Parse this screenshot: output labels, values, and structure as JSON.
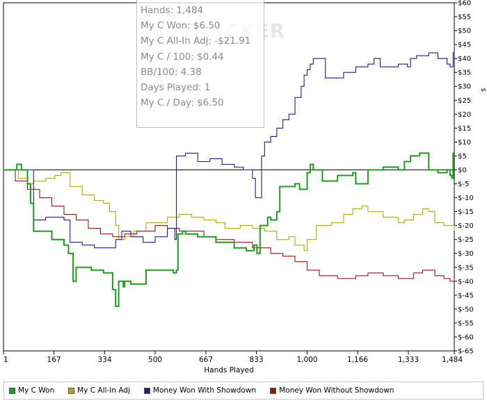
{
  "stats": [
    "Hands: 1,484",
    "My C Won: $6.50",
    "My C All-In Adj: -$21.91",
    "My C / 100: $0.44",
    "BB/100: 4.38",
    "Days Played: 1",
    "My C / Day: $6.50"
  ],
  "watermark": "TRACKER",
  "chart_data": {
    "type": "line",
    "xlabel": "Hands Played",
    "ylabel": "$",
    "xlim": [
      1,
      1484
    ],
    "ylim": [
      -65,
      60
    ],
    "x_ticks": [
      "1",
      "167",
      "334",
      "500",
      "667",
      "833",
      "1,000",
      "1,166",
      "1,333",
      "1,484"
    ],
    "y_ticks": [
      "$60",
      "$55",
      "$50",
      "$45",
      "$40",
      "$35",
      "$30",
      "$25",
      "$20",
      "$15",
      "$10",
      "$5",
      "$0",
      "$-5",
      "$-10",
      "$-15",
      "$-20",
      "$-25",
      "$-30",
      "$-35",
      "$-40",
      "$-45",
      "$-50",
      "$-55",
      "$-60",
      "$-65"
    ],
    "grid": false,
    "legend_position": "bottom",
    "series": [
      {
        "name": "My C Won",
        "color": "#1a9e1a",
        "x": [
          1,
          20,
          45,
          60,
          80,
          90,
          100,
          160,
          200,
          215,
          230,
          240,
          290,
          330,
          360,
          370,
          380,
          395,
          400,
          420,
          470,
          560,
          570,
          575,
          590,
          600,
          640,
          700,
          760,
          800,
          825,
          835,
          845,
          870,
          880,
          900,
          910,
          960,
          975,
          1000,
          1010,
          1020,
          1050,
          1100,
          1150,
          1160,
          1200,
          1250,
          1300,
          1320,
          1340,
          1370,
          1400,
          1430,
          1460,
          1470,
          1476,
          1480,
          1484
        ],
        "y": [
          0,
          0,
          2,
          0,
          -5,
          -12,
          -22,
          -25,
          -27,
          -30,
          -40,
          -35,
          -36,
          -37,
          -43,
          -49,
          -40,
          -42,
          -40,
          -41,
          -36,
          -37,
          -36,
          -23,
          -22,
          -23,
          -24,
          -26,
          -28,
          -29,
          -27,
          -30,
          -20,
          -17,
          -18,
          -15,
          -6,
          -5,
          -7,
          -1,
          2,
          0,
          -4,
          -2,
          -1,
          -5,
          0,
          1,
          0,
          3,
          5,
          6,
          0,
          -1,
          0,
          -2,
          -3,
          6,
          6.5
        ]
      },
      {
        "name": "My C All-In Adj",
        "color": "#aaaa1a",
        "x": [
          1,
          30,
          50,
          80,
          100,
          140,
          170,
          190,
          220,
          260,
          300,
          330,
          350,
          370,
          380,
          400,
          430,
          470,
          500,
          540,
          580,
          620,
          660,
          700,
          730,
          780,
          820,
          860,
          900,
          940,
          960,
          990,
          1000,
          1030,
          1080,
          1120,
          1150,
          1180,
          1200,
          1250,
          1300,
          1320,
          1350,
          1380,
          1400,
          1420,
          1450,
          1484
        ],
        "y": [
          0,
          0,
          -3,
          -5,
          -4,
          -3,
          -2,
          -1,
          -6,
          -9,
          -11,
          -12,
          -15,
          -20,
          -25,
          -24,
          -22,
          -19,
          -19,
          -17,
          -16,
          -17,
          -18,
          -19,
          -21,
          -20,
          -21,
          -22,
          -25,
          -24,
          -27,
          -29,
          -25,
          -20,
          -19,
          -16,
          -14,
          -13,
          -15,
          -17,
          -19,
          -18,
          -16,
          -14,
          -15,
          -19,
          -20,
          -21.91
        ]
      },
      {
        "name": "Money Won With Showdown",
        "color": "#1a1a8c",
        "x": [
          1,
          80,
          100,
          140,
          200,
          220,
          260,
          300,
          330,
          370,
          390,
          420,
          460,
          500,
          540,
          565,
          570,
          600,
          640,
          680,
          720,
          760,
          790,
          820,
          830,
          850,
          860,
          880,
          900,
          920,
          940,
          960,
          980,
          990,
          1000,
          1010,
          1020,
          1060,
          1120,
          1160,
          1200,
          1220,
          1240,
          1300,
          1330,
          1340,
          1360,
          1400,
          1430,
          1460,
          1470,
          1476,
          1480,
          1484
        ],
        "y": [
          0,
          0,
          -18,
          -17,
          -18,
          -26,
          -27,
          -28,
          -28,
          -25,
          -22,
          -24,
          -26,
          -24,
          -21,
          -25,
          5,
          6,
          3,
          4,
          2,
          1,
          0,
          -3,
          -10,
          5,
          10,
          12,
          15,
          18,
          20,
          26,
          30,
          34,
          36,
          38,
          40,
          33,
          35,
          37,
          38,
          40,
          37,
          38,
          37,
          40,
          41,
          42,
          40,
          38,
          37,
          37,
          42,
          46
        ]
      },
      {
        "name": "Money Won Without Showdown",
        "color": "#8b1a1a",
        "x": [
          1,
          40,
          80,
          120,
          160,
          200,
          240,
          280,
          320,
          360,
          400,
          440,
          500,
          540,
          580,
          620,
          660,
          700,
          760,
          820,
          880,
          920,
          960,
          1000,
          1040,
          1100,
          1160,
          1200,
          1250,
          1300,
          1350,
          1380,
          1420,
          1450,
          1470,
          1484
        ],
        "y": [
          0,
          -4,
          -7,
          -10,
          -13,
          -16,
          -18,
          -21,
          -23,
          -24,
          -23,
          -22,
          -20,
          -21,
          -22,
          -22,
          -24,
          -25,
          -26,
          -28,
          -30,
          -31,
          -33,
          -36,
          -38,
          -39,
          -38,
          -37,
          -38,
          -39,
          -37,
          -36,
          -38,
          -39,
          -40,
          -39
        ]
      }
    ]
  }
}
